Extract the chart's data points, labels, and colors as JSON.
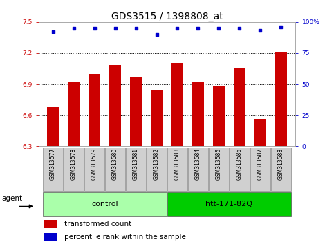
{
  "title": "GDS3515 / 1398808_at",
  "samples": [
    "GSM313577",
    "GSM313578",
    "GSM313579",
    "GSM313580",
    "GSM313581",
    "GSM313582",
    "GSM313583",
    "GSM313584",
    "GSM313585",
    "GSM313586",
    "GSM313587",
    "GSM313588"
  ],
  "bar_values": [
    6.68,
    6.92,
    7.0,
    7.08,
    6.97,
    6.84,
    7.1,
    6.92,
    6.88,
    7.06,
    6.57,
    7.21
  ],
  "percentile_values": [
    92,
    95,
    95,
    95,
    95,
    90,
    95,
    95,
    95,
    95,
    93,
    96
  ],
  "percentile_scale": 100,
  "ylim_left": [
    6.3,
    7.5
  ],
  "ylim_right": [
    0,
    100
  ],
  "yticks_left": [
    6.3,
    6.6,
    6.9,
    7.2,
    7.5
  ],
  "ytick_labels_left": [
    "6.3",
    "6.6",
    "6.9",
    "7.2",
    "7.5"
  ],
  "yticks_right": [
    0,
    25,
    50,
    75,
    100
  ],
  "ytick_labels_right": [
    "0",
    "25",
    "50",
    "75",
    "100%"
  ],
  "hlines": [
    6.6,
    6.9,
    7.2
  ],
  "bar_color": "#cc0000",
  "dot_color": "#0000cc",
  "bar_width": 0.55,
  "groups": [
    {
      "label": "control",
      "start": 0,
      "end": 5,
      "color": "#aaffaa"
    },
    {
      "label": "htt-171-82Q",
      "start": 6,
      "end": 11,
      "color": "#00cc00"
    }
  ],
  "agent_label": "agent",
  "legend_bar_label": "transformed count",
  "legend_dot_label": "percentile rank within the sample",
  "title_fontsize": 10,
  "tick_label_fontsize": 6.5,
  "group_label_fontsize": 8,
  "legend_fontsize": 7.5,
  "sample_fontsize": 5.5,
  "agent_fontsize": 7.5,
  "plot_bg_color": "#ffffff",
  "left_tick_color": "#cc0000",
  "right_tick_color": "#0000cc"
}
